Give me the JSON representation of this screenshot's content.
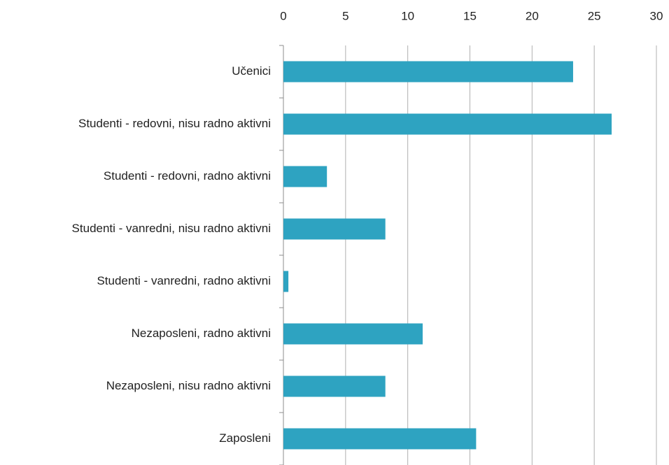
{
  "chart_data": {
    "type": "bar",
    "orientation": "horizontal",
    "categories": [
      "Učenici",
      "Studenti - redovni, nisu radno aktivni",
      "Studenti - redovni, radno aktivni",
      "Studenti - vanredni, nisu radno aktivni",
      "Studenti - vanredni, radno aktivni",
      "Nezaposleni, radno aktivni",
      "Nezaposleni, nisu radno aktivni",
      "Zaposleni"
    ],
    "values": [
      23.3,
      26.4,
      3.5,
      8.2,
      0.4,
      11.2,
      8.2,
      15.5
    ],
    "color": "#2ea3c1",
    "xlim": [
      0,
      30
    ],
    "xticks": [
      0,
      5,
      10,
      15,
      20,
      25,
      30
    ],
    "grid": true
  }
}
